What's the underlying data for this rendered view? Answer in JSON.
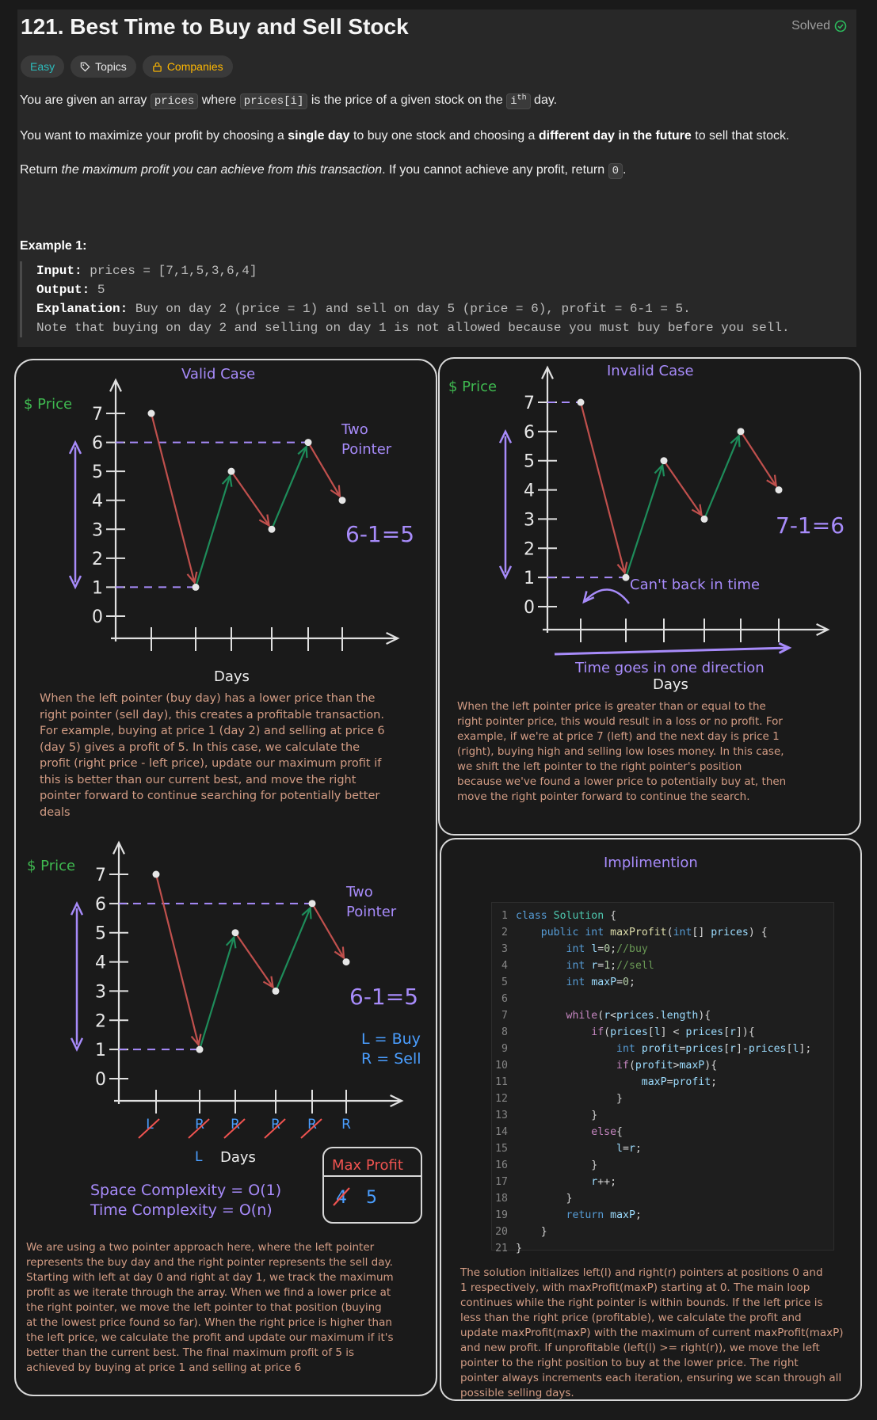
{
  "problem": {
    "title": "121. Best Time to Buy and Sell Stock",
    "status": "Solved",
    "tags": [
      "Easy",
      "Topics",
      "Companies"
    ],
    "p1": [
      "You are given an array ",
      "prices",
      " where ",
      "prices[i]",
      " is the price of a given stock on the ",
      "i",
      "th",
      " day."
    ],
    "p2": [
      "You want to maximize your profit by choosing a ",
      "single day",
      " to buy one stock and choosing a ",
      "different day in the future",
      " to sell that stock."
    ],
    "p3": [
      "Return ",
      "the maximum profit you can achieve from this transaction",
      ". If you cannot achieve any profit, return ",
      "0",
      "."
    ],
    "example_title": "Example 1:",
    "example": {
      "input_label": "Input:",
      "input_value": " prices = [7,1,5,3,6,4]",
      "output_label": "Output:",
      "output_value": " 5",
      "explanation_label": "Explanation:",
      "explanation_value": " Buy on day 2 (price = 1) and sell on day 5 (price = 6), profit = 6-1 = 5.",
      "note": "Note that buying on day 2 and selling on day 1 is not allowed because you must buy before you sell."
    }
  },
  "valid_case": {
    "title": "Valid Case",
    "ylabel": "$ Price",
    "xlabel": "Days",
    "annotation_two_pointer": [
      "Two",
      "Pointer"
    ],
    "formula": "6-1=5",
    "description": [
      "When the left pointer (buy day) has a lower price than the",
      "right pointer (sell day), this creates a profitable transaction.",
      "For example, buying at price 1 (day 2) and selling at price 6",
      "(day 5) gives a profit of 5. In this case, we calculate the",
      "profit (right price - left price), update our maximum profit if",
      "this is better than our current best, and move the right",
      "pointer forward to continue searching for potentially better",
      "deals"
    ]
  },
  "invalid_case": {
    "title": "Invalid Case",
    "ylabel": "$ Price",
    "xlabel": "Days",
    "formula": "7-1=6",
    "annotation_back": "Can't back in time",
    "annotation_time": "Time goes in one direction",
    "description": [
      "When the left pointer price is greater than or equal to the",
      "right pointer price, this would result in a loss or no profit. For",
      "example, if we're at price 7 (left) and the next day is price 1",
      "(right), buying high and selling low loses money. In this case,",
      "we shift the left pointer to the right pointer's position",
      "because we've found a lower price to potentially buy at, then",
      "move the right pointer forward to continue the search."
    ]
  },
  "walkthrough": {
    "ylabel": "$ Price",
    "xlabel": "Days",
    "annotation_two_pointer": [
      "Two",
      "Pointer"
    ],
    "formula": "6-1=5",
    "legend": [
      "L = Buy",
      "R = Sell"
    ],
    "pointer_labels": [
      "L",
      "R",
      "R",
      "R",
      "R",
      "R"
    ],
    "left_label": "L",
    "max_profit_title": "Max Profit",
    "max_profit_old": "4",
    "max_profit_new": "5",
    "complexity": [
      "Space Complexity = O(1)",
      "Time Complexity = O(n)"
    ],
    "description": [
      "We are using a two pointer approach here, where the left pointer",
      "represents the buy day and the right pointer represents the sell day.",
      "Starting with left at day 0 and right at day 1, we track the maximum",
      "profit as we iterate through the array. When we find a lower price at",
      "the right pointer, we move the left pointer to that position (buying",
      "at the lowest price found so far). When the right price is higher than",
      "the left price, we calculate the profit and update our maximum if it's",
      "better than the current best. The final maximum profit of 5 is",
      "achieved by buying at price 1 and selling at price 6"
    ]
  },
  "implementation": {
    "title": "Implimention",
    "code_lines": [
      "class Solution {",
      "    public int maxProfit(int[] prices) {",
      "        int l=0;//buy",
      "        int r=1;//sell",
      "        int maxP=0;",
      "",
      "        while(r<prices.length){",
      "            if(prices[l] < prices[r]){",
      "                int profit=prices[r]-prices[l];",
      "                if(profit>maxP){",
      "                    maxP=profit;",
      "                }",
      "            }",
      "            else{",
      "                l=r;",
      "            }",
      "            r++;",
      "        }",
      "        return maxP;",
      "    }",
      "}"
    ],
    "description": [
      "The solution initializes left(l) and right(r) pointers at positions 0 and",
      "1 respectively, with maxProfit(maxP) starting at 0. The main loop",
      "continues while the right pointer is within bounds. If the left price is",
      "less than the right price (profitable), we calculate the profit and",
      "update maxProfit(maxP) with the maximum of current maxProfit(maxP)",
      "and new profit. If unprofitable (left(l) >= right(r)), we move the left",
      "pointer to the right position to buy at the lower price. The right",
      "pointer always increments each iteration, ensuring we scan through all",
      "possible selling days."
    ]
  },
  "chart_data": [
    {
      "type": "line",
      "name": "valid-case",
      "x": [
        1,
        2,
        3,
        4,
        5,
        6
      ],
      "y": [
        7,
        1,
        5,
        3,
        6,
        4
      ],
      "ylim": [
        0,
        7
      ],
      "title": "Valid Case",
      "xlabel": "Days",
      "ylabel": "$ Price"
    },
    {
      "type": "line",
      "name": "invalid-case",
      "x": [
        1,
        2,
        3,
        4,
        5,
        6
      ],
      "y": [
        7,
        1,
        5,
        3,
        6,
        4
      ],
      "ylim": [
        0,
        7
      ],
      "title": "Invalid Case",
      "xlabel": "Days",
      "ylabel": "$ Price"
    },
    {
      "type": "line",
      "name": "walkthrough",
      "x": [
        1,
        2,
        3,
        4,
        5,
        6
      ],
      "y": [
        7,
        1,
        5,
        3,
        6,
        4
      ],
      "ylim": [
        0,
        7
      ],
      "title": "",
      "xlabel": "Days",
      "ylabel": "$ Price"
    }
  ],
  "colors": {
    "down": "#c0504d",
    "up": "#1e8c5a",
    "accent": "#a78bfa",
    "green_label": "#3fb950",
    "blue_label": "#4a9eff",
    "red_label": "#ef5350"
  }
}
